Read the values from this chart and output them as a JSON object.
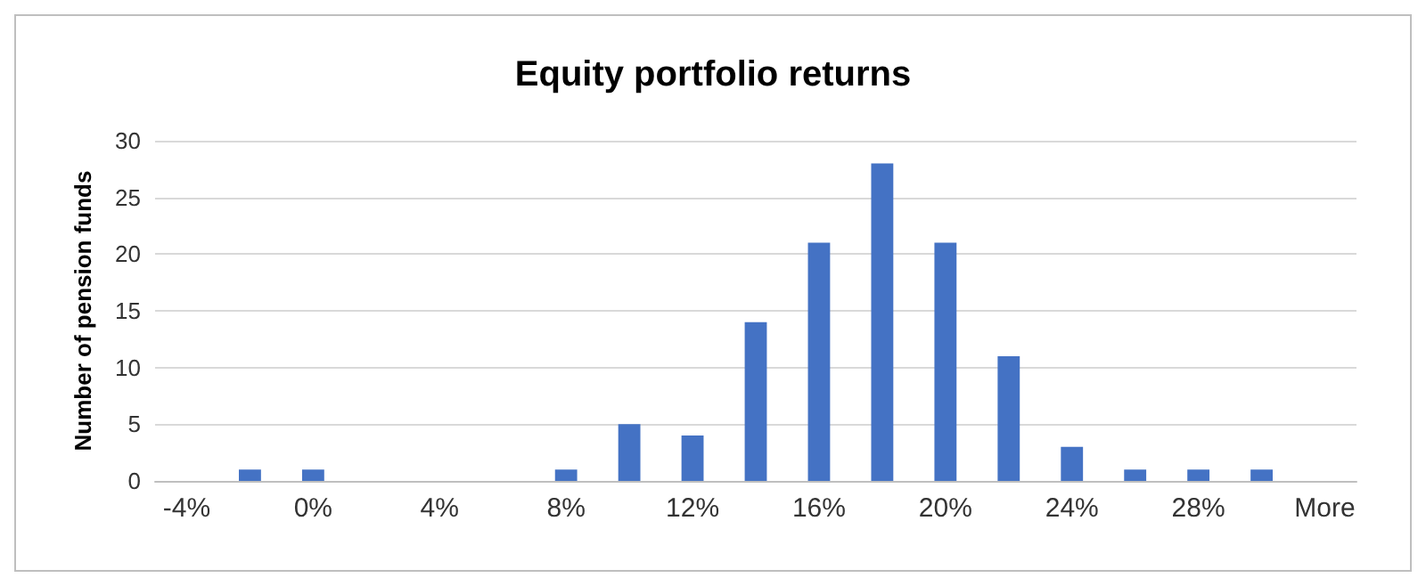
{
  "chart_data": {
    "type": "bar",
    "title": "Equity portfolio returns",
    "ylabel": "Number of pension funds",
    "categories": [
      "-4%",
      null,
      "0%",
      null,
      "4%",
      null,
      "8%",
      null,
      "12%",
      null,
      "16%",
      null,
      "20%",
      null,
      "24%",
      null,
      "28%",
      null,
      "More"
    ],
    "values": [
      0,
      1,
      1,
      0,
      0,
      0,
      1,
      5,
      4,
      14,
      21,
      28,
      21,
      11,
      3,
      1,
      1,
      1,
      0
    ],
    "color": "#4472c4",
    "ylim": [
      0,
      30
    ],
    "yticks": [
      0,
      5,
      10,
      15,
      20,
      25,
      30
    ],
    "grid": "y"
  }
}
